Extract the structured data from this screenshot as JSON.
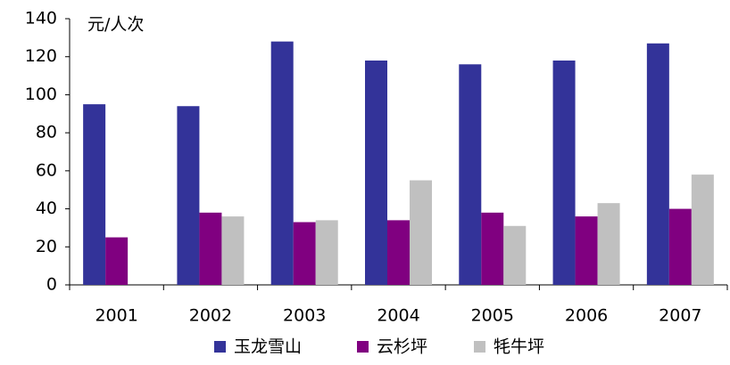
{
  "chart_data": {
    "type": "bar",
    "y_label": "元/人次",
    "categories": [
      "2001",
      "2002",
      "2003",
      "2004",
      "2005",
      "2006",
      "2007"
    ],
    "series": [
      {
        "name": "玉龙雪山",
        "color": "#333399",
        "values": [
          95,
          94,
          128,
          118,
          116,
          118,
          127
        ]
      },
      {
        "name": "云杉坪",
        "color": "#800080",
        "values": [
          25,
          38,
          33,
          34,
          38,
          36,
          40
        ]
      },
      {
        "name": "牦牛坪",
        "color": "#c0c0c0",
        "values": [
          null,
          36,
          34,
          55,
          31,
          43,
          58
        ]
      }
    ],
    "ylim": [
      0,
      140
    ],
    "yticks": [
      0,
      20,
      40,
      60,
      80,
      100,
      120,
      140
    ],
    "grid": false,
    "legend": "bottom"
  }
}
